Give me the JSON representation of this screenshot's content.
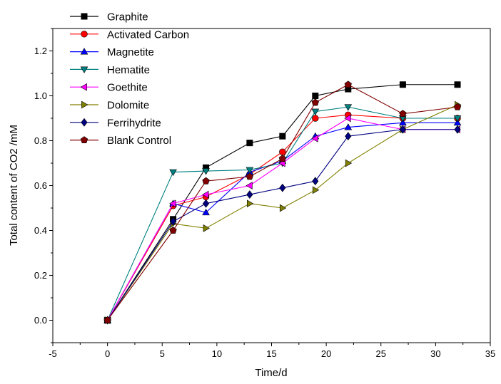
{
  "chart_data": {
    "type": "line",
    "title": "",
    "xlabel": "Time/d",
    "ylabel": "Total content of CO2 /mM",
    "xlim": [
      -5,
      35
    ],
    "ylim": [
      -0.1,
      1.3
    ],
    "xticks": [
      -5,
      0,
      5,
      10,
      15,
      20,
      25,
      30,
      35
    ],
    "yticks": [
      0.0,
      0.2,
      0.4,
      0.6,
      0.8,
      1.0,
      1.2
    ],
    "xtick_labels": [
      "-5",
      "0",
      "5",
      "10",
      "15",
      "20",
      "25",
      "30",
      "35"
    ],
    "ytick_labels": [
      "0.0",
      "0.2",
      "0.4",
      "0.6",
      "0.8",
      "1.0",
      "1.2"
    ],
    "grid": false,
    "legend_position": "top-left",
    "series": [
      {
        "name": "Graphite",
        "color": "#000000",
        "marker": "square",
        "x": [
          0,
          6,
          9,
          13,
          16,
          19,
          22,
          27,
          32
        ],
        "y": [
          0.0,
          0.45,
          0.68,
          0.79,
          0.82,
          1.0,
          1.03,
          1.05,
          1.05
        ]
      },
      {
        "name": "Activated Carbon",
        "color": "#ff0000",
        "marker": "circle",
        "x": [
          0,
          6,
          9,
          13,
          16,
          19,
          22,
          27,
          32
        ],
        "y": [
          0.0,
          0.51,
          0.55,
          0.65,
          0.75,
          0.9,
          0.915,
          0.9,
          0.9
        ]
      },
      {
        "name": "Magnetite",
        "color": "#0000ff",
        "marker": "triangle-up",
        "x": [
          0,
          6,
          9,
          13,
          16,
          19,
          22,
          27,
          32
        ],
        "y": [
          0.0,
          0.52,
          0.48,
          0.66,
          0.71,
          0.82,
          0.86,
          0.88,
          0.88
        ]
      },
      {
        "name": "Hematite",
        "color": "#008080",
        "marker": "triangle-down",
        "x": [
          0,
          6,
          9,
          13,
          16,
          19,
          22,
          27,
          32
        ],
        "y": [
          0.0,
          0.66,
          0.665,
          0.67,
          0.7,
          0.93,
          0.95,
          0.9,
          0.9
        ]
      },
      {
        "name": "Goethite",
        "color": "#ff00ff",
        "marker": "triangle-left",
        "x": [
          0,
          6,
          9,
          13,
          16,
          19,
          22,
          27,
          32
        ],
        "y": [
          0.0,
          0.52,
          0.56,
          0.6,
          0.7,
          0.81,
          0.9,
          0.85,
          0.85
        ]
      },
      {
        "name": "Dolomite",
        "color": "#808000",
        "marker": "triangle-right",
        "x": [
          0,
          6,
          9,
          13,
          16,
          19,
          22,
          27,
          32
        ],
        "y": [
          0.0,
          0.43,
          0.41,
          0.52,
          0.5,
          0.58,
          0.7,
          0.85,
          0.96
        ]
      },
      {
        "name": "Ferrihydrite",
        "color": "#000080",
        "marker": "diamond",
        "x": [
          0,
          6,
          9,
          13,
          16,
          19,
          22,
          27,
          32
        ],
        "y": [
          0.0,
          0.44,
          0.52,
          0.56,
          0.59,
          0.62,
          0.82,
          0.85,
          0.85
        ]
      },
      {
        "name": "Blank Control",
        "color": "#800000",
        "marker": "pentagon",
        "x": [
          0,
          6,
          9,
          13,
          16,
          19,
          22,
          27,
          32
        ],
        "y": [
          0.0,
          0.4,
          0.62,
          0.64,
          0.72,
          0.97,
          1.05,
          0.92,
          0.95
        ]
      }
    ]
  }
}
